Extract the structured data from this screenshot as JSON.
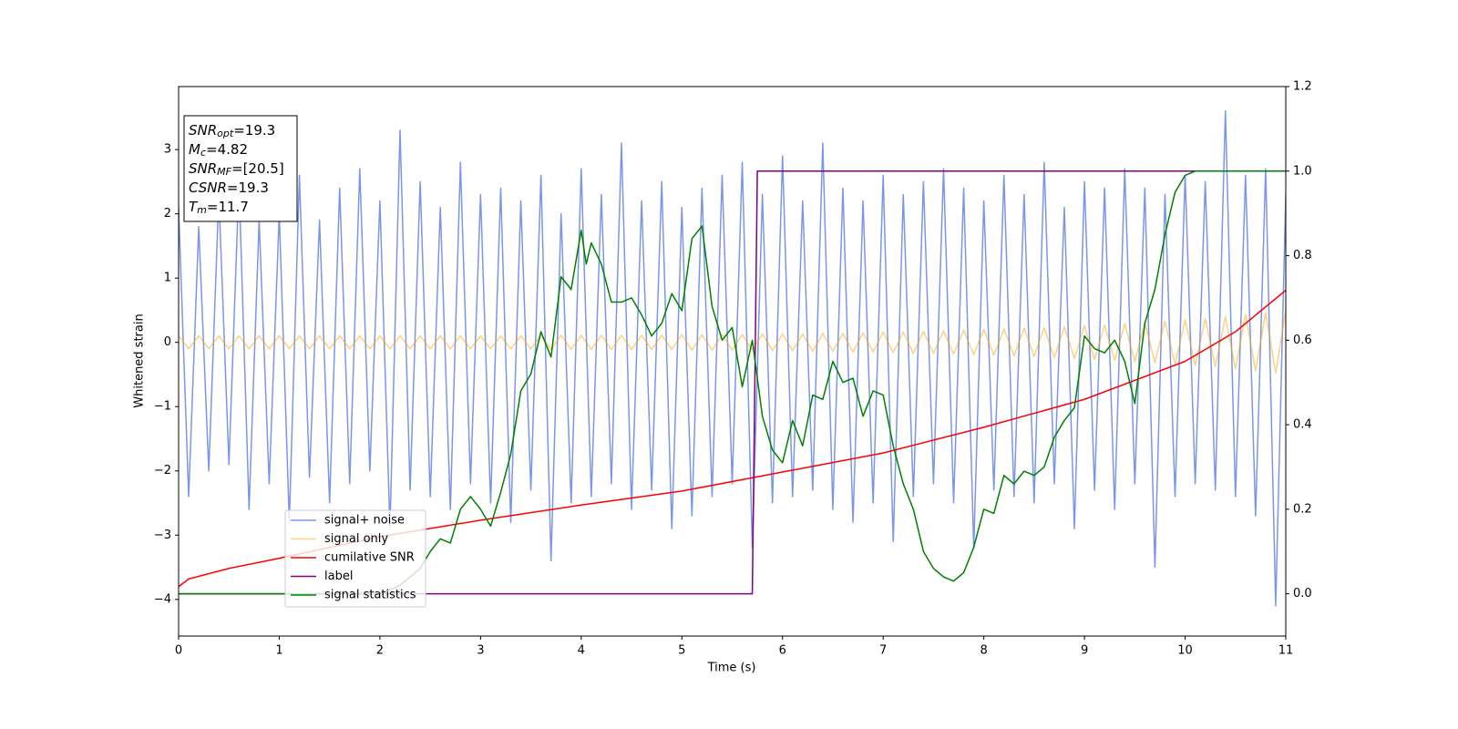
{
  "chart_data": {
    "type": "line",
    "xlabel": "Time (s)",
    "ylabel": "Whitened strain",
    "xlim": [
      0,
      11
    ],
    "xticks": [
      0,
      1,
      2,
      3,
      4,
      5,
      6,
      7,
      8,
      9,
      10,
      11
    ],
    "ylim": [
      -4.57,
      3.98
    ],
    "yticks": [
      {
        "value": -4,
        "label": "−4"
      },
      {
        "value": -3,
        "label": "−3"
      },
      {
        "value": -2,
        "label": "−2"
      },
      {
        "value": -1,
        "label": "−1"
      },
      0,
      1,
      2,
      3
    ],
    "y2lim": [
      -0.1,
      1.2
    ],
    "y2ticks": [
      {
        "value": 0,
        "label": "0.0"
      },
      0.2,
      0.4,
      0.6,
      0.8,
      {
        "value": 1,
        "label": "1.0"
      },
      1.2
    ],
    "legend": "lower left",
    "x": [
      0,
      0.1,
      0.2,
      0.3,
      0.4,
      0.5,
      0.6,
      0.7,
      0.8,
      0.9,
      1,
      1.1,
      1.2,
      1.3,
      1.4,
      1.5,
      1.6,
      1.7,
      1.8,
      1.9,
      2,
      2.1,
      2.2,
      2.3,
      2.4,
      2.5,
      2.6,
      2.7,
      2.8,
      2.9,
      3,
      3.1,
      3.2,
      3.3,
      3.4,
      3.5,
      3.6,
      3.7,
      3.8,
      3.9,
      4,
      4.1,
      4.2,
      4.3,
      4.4,
      4.5,
      4.6,
      4.7,
      4.8,
      4.9,
      5,
      5.1,
      5.2,
      5.3,
      5.4,
      5.5,
      5.6,
      5.7,
      5.8,
      5.9,
      6,
      6.1,
      6.2,
      6.3,
      6.4,
      6.5,
      6.6,
      6.7,
      6.8,
      6.9,
      7,
      7.1,
      7.2,
      7.3,
      7.4,
      7.5,
      7.6,
      7.7,
      7.8,
      7.9,
      8,
      8.1,
      8.2,
      8.3,
      8.4,
      8.5,
      8.6,
      8.7,
      8.8,
      8.9,
      9,
      9.1,
      9.2,
      9.3,
      9.4,
      9.5,
      9.6,
      9.7,
      9.8,
      9.9,
      10,
      10.1,
      10.2,
      10.3,
      10.4,
      10.5,
      10.6,
      10.7,
      10.8,
      10.9,
      11
    ],
    "series": [
      {
        "name": "signal+ noise",
        "color": "#4169e1",
        "alpha": 0.7,
        "values": [
          2.1,
          -2.4,
          1.8,
          -2.0,
          2.3,
          -1.9,
          2.5,
          -2.6,
          1.9,
          -2.2,
          2.0,
          -2.8,
          2.6,
          -2.1,
          1.9,
          -2.5,
          2.4,
          -2.2,
          2.7,
          -2.0,
          2.2,
          -2.9,
          3.3,
          -2.3,
          2.5,
          -2.4,
          2.1,
          -2.6,
          2.8,
          -2.2,
          2.3,
          -2.5,
          2.4,
          -2.8,
          2.2,
          -2.3,
          2.6,
          -3.4,
          2.0,
          -2.5,
          2.7,
          -2.4,
          2.3,
          -2.2,
          3.1,
          -2.6,
          2.2,
          -2.3,
          2.5,
          -2.9,
          2.1,
          -2.7,
          2.4,
          -2.4,
          2.6,
          -2.2,
          2.8,
          -3.2,
          2.3,
          -2.5,
          2.9,
          -2.4,
          2.2,
          -2.3,
          3.1,
          -2.6,
          2.4,
          -2.8,
          2.2,
          -2.5,
          2.6,
          -3.1,
          2.3,
          -2.4,
          2.5,
          -2.2,
          2.7,
          -2.5,
          2.4,
          -3.2,
          2.2,
          -2.3,
          2.6,
          -2.4,
          2.3,
          -2.5,
          2.8,
          -2.2,
          2.1,
          -2.9,
          2.5,
          -2.3,
          2.4,
          -2.6,
          2.7,
          -2.2,
          2.4,
          -3.5,
          2.3,
          -2.4,
          2.6,
          -2.2,
          2.5,
          -2.3,
          3.6,
          -2.4,
          2.6,
          -2.7,
          2.7,
          -4.1,
          2.3
        ]
      },
      {
        "name": "signal only",
        "color": "#ffa500",
        "alpha": 0.5,
        "values": [
          0.1,
          -0.1,
          0.1,
          -0.1,
          0.1,
          -0.1,
          0.1,
          -0.1,
          0.1,
          -0.1,
          0.1,
          -0.1,
          0.1,
          -0.1,
          0.1,
          -0.1,
          0.1,
          -0.1,
          0.1,
          -0.1,
          0.1,
          -0.1,
          0.1,
          -0.1,
          0.1,
          -0.1,
          0.1,
          -0.1,
          0.1,
          -0.1,
          0.1,
          -0.1,
          0.1,
          -0.1,
          0.1,
          -0.1,
          0.11,
          -0.11,
          0.11,
          -0.11,
          0.11,
          -0.11,
          0.11,
          -0.11,
          0.11,
          -0.11,
          0.11,
          -0.11,
          0.11,
          -0.11,
          0.12,
          -0.12,
          0.12,
          -0.12,
          0.12,
          -0.12,
          0.12,
          -0.12,
          0.13,
          -0.13,
          0.13,
          -0.13,
          0.13,
          -0.14,
          0.14,
          -0.14,
          0.14,
          -0.15,
          0.15,
          -0.15,
          0.16,
          -0.16,
          0.16,
          -0.17,
          0.17,
          -0.17,
          0.18,
          -0.18,
          0.19,
          -0.19,
          0.2,
          -0.2,
          0.21,
          -0.21,
          0.22,
          -0.22,
          0.23,
          -0.24,
          0.24,
          -0.25,
          0.26,
          -0.27,
          0.27,
          -0.28,
          0.29,
          -0.3,
          0.31,
          -0.32,
          0.33,
          -0.34,
          0.35,
          -0.36,
          0.37,
          -0.38,
          0.4,
          -0.41,
          0.43,
          -0.44,
          0.46,
          -0.48,
          0.5
        ]
      },
      {
        "name": "cumilative SNR",
        "color": "#ff0000",
        "axis": "y2",
        "x": [
          0,
          0.1,
          0.5,
          1,
          2,
          3,
          4,
          5,
          6,
          7,
          8,
          9,
          10,
          10.5,
          11
        ],
        "values": [
          0.017,
          0.035,
          0.06,
          0.084,
          0.135,
          0.174,
          0.21,
          0.243,
          0.288,
          0.333,
          0.394,
          0.46,
          0.55,
          0.62,
          0.718
        ]
      },
      {
        "name": "label",
        "color": "#800080",
        "axis": "y2",
        "x": [
          0,
          5.7,
          5.75,
          11
        ],
        "values": [
          0,
          0,
          1,
          1
        ]
      },
      {
        "name": "signal statistics",
        "color": "#008000",
        "axis": "y2",
        "x": [
          0,
          2,
          2.2,
          2.4,
          2.5,
          2.6,
          2.7,
          2.8,
          2.9,
          3,
          3.1,
          3.2,
          3.3,
          3.4,
          3.5,
          3.6,
          3.7,
          3.8,
          3.9,
          4,
          4.05,
          4.1,
          4.2,
          4.3,
          4.4,
          4.5,
          4.6,
          4.7,
          4.8,
          4.9,
          5,
          5.1,
          5.2,
          5.3,
          5.4,
          5.5,
          5.6,
          5.7,
          5.8,
          5.9,
          6,
          6.1,
          6.2,
          6.3,
          6.4,
          6.5,
          6.6,
          6.7,
          6.8,
          6.9,
          7,
          7.1,
          7.2,
          7.3,
          7.4,
          7.5,
          7.6,
          7.7,
          7.8,
          7.9,
          8,
          8.1,
          8.2,
          8.3,
          8.4,
          8.5,
          8.6,
          8.7,
          8.8,
          8.9,
          9,
          9.1,
          9.2,
          9.3,
          9.4,
          9.5,
          9.6,
          9.7,
          9.8,
          9.9,
          10,
          10.1,
          11
        ],
        "values": [
          0,
          0,
          0.02,
          0.06,
          0.1,
          0.13,
          0.12,
          0.2,
          0.23,
          0.2,
          0.16,
          0.24,
          0.33,
          0.48,
          0.52,
          0.62,
          0.56,
          0.75,
          0.72,
          0.86,
          0.78,
          0.83,
          0.78,
          0.69,
          0.69,
          0.7,
          0.66,
          0.61,
          0.64,
          0.71,
          0.67,
          0.84,
          0.87,
          0.68,
          0.6,
          0.63,
          0.49,
          0.6,
          0.42,
          0.34,
          0.31,
          0.41,
          0.35,
          0.47,
          0.46,
          0.55,
          0.5,
          0.51,
          0.42,
          0.48,
          0.47,
          0.35,
          0.26,
          0.2,
          0.1,
          0.06,
          0.04,
          0.03,
          0.05,
          0.11,
          0.2,
          0.19,
          0.28,
          0.26,
          0.29,
          0.28,
          0.3,
          0.37,
          0.41,
          0.44,
          0.61,
          0.58,
          0.57,
          0.6,
          0.55,
          0.45,
          0.64,
          0.72,
          0.85,
          0.95,
          0.99,
          1,
          1
        ]
      }
    ],
    "annotations": [
      {
        "text": "SNR",
        "sub": "opt",
        "rest": "=19.3"
      },
      {
        "text": "M",
        "sub": "c",
        "rest": "=4.82"
      },
      {
        "text": "SNR",
        "sub": "MF",
        "rest": "=[20.5]"
      },
      {
        "text": "CSNR",
        "rest": "=19.3"
      },
      {
        "text": "T",
        "sub": "m",
        "rest": "=11.7"
      }
    ]
  }
}
